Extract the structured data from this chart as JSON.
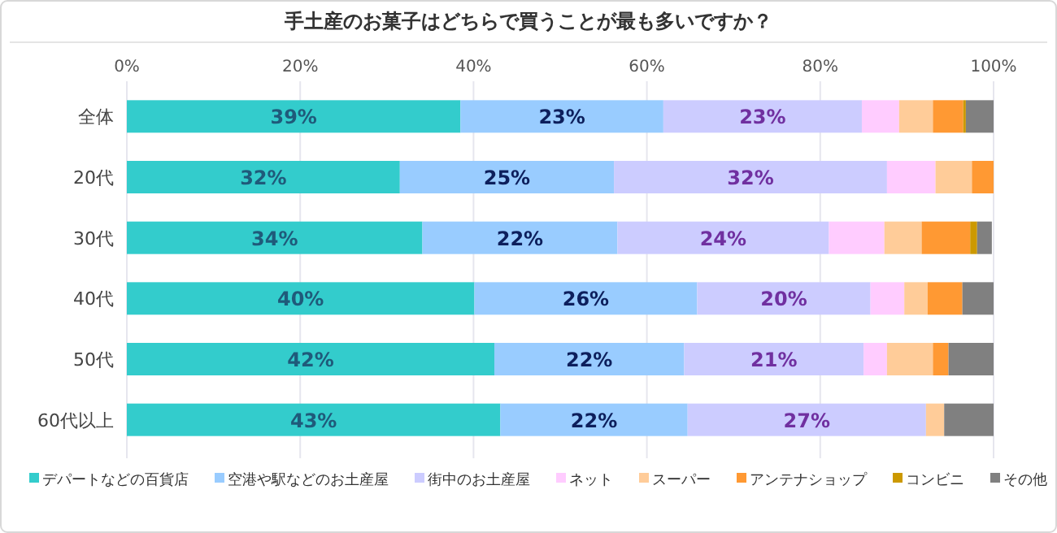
{
  "chart_data": {
    "type": "bar",
    "orientation": "horizontal",
    "stacked": true,
    "title": "手土産のお菓子はどちらで買うことが最も多いですか？",
    "categories": [
      "全体",
      "20代",
      "30代",
      "40代",
      "50代",
      "60代以上"
    ],
    "series": [
      {
        "name": "デパートなどの百貨店",
        "color": "#33cccc",
        "values": [
          38.5,
          31.5,
          34.1,
          40.1,
          42.4,
          43.1
        ],
        "value_labels": [
          "39%",
          "32%",
          "34%",
          "40%",
          "42%",
          "43%"
        ]
      },
      {
        "name": "空港や駅などのお土産屋",
        "color": "#99ccff",
        "values": [
          23.4,
          24.7,
          22.5,
          25.7,
          21.9,
          21.6
        ],
        "value_labels": [
          "23%",
          "25%",
          "22%",
          "26%",
          "22%",
          "22%"
        ]
      },
      {
        "name": "街中のお土産屋",
        "color": "#ccccff",
        "values": [
          22.9,
          31.5,
          24.4,
          20.0,
          20.7,
          27.5
        ],
        "value_labels": [
          "23%",
          "32%",
          "24%",
          "20%",
          "21%",
          "27%"
        ]
      },
      {
        "name": "ネット",
        "color": "#ffccff",
        "values": [
          4.3,
          5.6,
          6.4,
          3.9,
          2.7,
          0
        ]
      },
      {
        "name": "スーパー",
        "color": "#ffcc99",
        "values": [
          3.9,
          4.2,
          4.3,
          2.7,
          5.3,
          2.1
        ]
      },
      {
        "name": "アンテナショップ",
        "color": "#ff9933",
        "values": [
          3.5,
          2.5,
          5.6,
          4.0,
          1.8,
          0
        ]
      },
      {
        "name": "コンビニ",
        "color": "#cc9900",
        "values": [
          0.3,
          0,
          0.8,
          0,
          0,
          0
        ]
      },
      {
        "name": "その他",
        "color": "#808080",
        "values": [
          3.2,
          0,
          1.7,
          3.6,
          5.2,
          5.7
        ]
      }
    ],
    "xlim": [
      0,
      100
    ],
    "xticks": [
      {
        "value": 0,
        "label": "0%"
      },
      {
        "value": 20,
        "label": "20%"
      },
      {
        "value": 40,
        "label": "40%"
      },
      {
        "value": 60,
        "label": "60%"
      },
      {
        "value": 80,
        "label": "80%"
      },
      {
        "value": 100,
        "label": "100%"
      }
    ],
    "grid": "x",
    "legend": "bottom"
  }
}
